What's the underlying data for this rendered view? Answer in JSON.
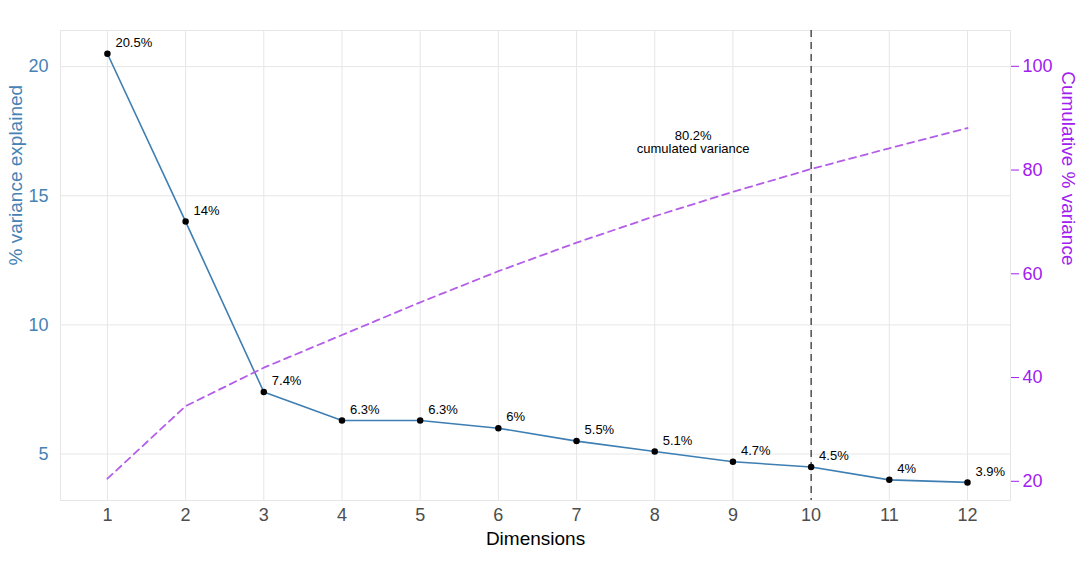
{
  "chart_data": {
    "type": "line",
    "x": [
      1,
      2,
      3,
      4,
      5,
      6,
      7,
      8,
      9,
      10,
      11,
      12
    ],
    "xlim": [
      0.4,
      12.55
    ],
    "xticks": [
      1,
      2,
      3,
      4,
      5,
      6,
      7,
      8,
      9,
      10,
      11,
      12
    ],
    "xlabel": "Dimensions",
    "ylabel": "% variance explained",
    "ylim": [
      3.2,
      21.4
    ],
    "yticks": [
      5,
      10,
      15,
      20
    ],
    "y2label": "Cumulative % variance",
    "y2lim": [
      16.3,
      106.9
    ],
    "y2ticks": [
      20,
      40,
      60,
      80,
      100
    ],
    "grid": true,
    "series": [
      {
        "color": "#3d7eb3",
        "marker": "circle",
        "line_style": "solid",
        "data_labels": true,
        "values": [
          20.5,
          14,
          7.4,
          6.3,
          6.3,
          6,
          5.5,
          5.1,
          4.7,
          4.5,
          4,
          3.9
        ],
        "value_labels": [
          "20.5%",
          "14%",
          "7.4%",
          "6.3%",
          "6.3%",
          "6%",
          "5.5%",
          "5.1%",
          "4.7%",
          "4.5%",
          "4%",
          "3.9%"
        ]
      },
      {
        "color": "#b45ee8",
        "line_style": "dashed",
        "axis": "y2",
        "values": [
          20.5,
          34.5,
          41.9,
          48.2,
          54.5,
          60.5,
          66.0,
          71.1,
          75.8,
          80.2,
          84.2,
          88.1
        ]
      }
    ],
    "annotations": [
      {
        "x": 10,
        "line_style": "dashed",
        "value": 80.2,
        "label": "80.2%",
        "text": "cumulated variance"
      }
    ]
  }
}
